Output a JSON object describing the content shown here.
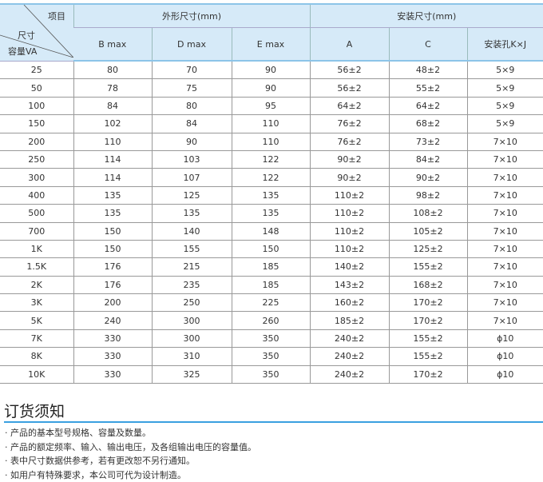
{
  "table": {
    "corner": {
      "top": "项目",
      "mid": "尺寸",
      "bottom": "容量VA"
    },
    "groups": [
      "外形尺寸(mm)",
      "安装尺寸(mm)"
    ],
    "columns": [
      "B max",
      "D max",
      "E max",
      "A",
      "C",
      "安装孔K×J"
    ],
    "rows": [
      [
        "25",
        "80",
        "70",
        "90",
        "56±2",
        "48±2",
        "5×9"
      ],
      [
        "50",
        "78",
        "75",
        "90",
        "56±2",
        "55±2",
        "5×9"
      ],
      [
        "100",
        "84",
        "80",
        "95",
        "64±2",
        "64±2",
        "5×9"
      ],
      [
        "150",
        "102",
        "84",
        "110",
        "76±2",
        "68±2",
        "5×9"
      ],
      [
        "200",
        "110",
        "90",
        "110",
        "76±2",
        "73±2",
        "7×10"
      ],
      [
        "250",
        "114",
        "103",
        "122",
        "90±2",
        "84±2",
        "7×10"
      ],
      [
        "300",
        "114",
        "107",
        "122",
        "90±2",
        "90±2",
        "7×10"
      ],
      [
        "400",
        "135",
        "125",
        "135",
        "110±2",
        "98±2",
        "7×10"
      ],
      [
        "500",
        "135",
        "135",
        "135",
        "110±2",
        "108±2",
        "7×10"
      ],
      [
        "700",
        "150",
        "140",
        "148",
        "110±2",
        "105±2",
        "7×10"
      ],
      [
        "1K",
        "150",
        "155",
        "150",
        "110±2",
        "125±2",
        "7×10"
      ],
      [
        "1.5K",
        "176",
        "215",
        "185",
        "140±2",
        "155±2",
        "7×10"
      ],
      [
        "2K",
        "176",
        "235",
        "185",
        "143±2",
        "168±2",
        "7×10"
      ],
      [
        "3K",
        "200",
        "250",
        "225",
        "160±2",
        "170±2",
        "7×10"
      ],
      [
        "5K",
        "240",
        "300",
        "260",
        "185±2",
        "170±2",
        "7×10"
      ],
      [
        "7K",
        "330",
        "300",
        "350",
        "240±2",
        "155±2",
        "ϕ10"
      ],
      [
        "8K",
        "330",
        "310",
        "350",
        "240±2",
        "155±2",
        "ϕ10"
      ],
      [
        "10K",
        "330",
        "325",
        "350",
        "240±2",
        "170±2",
        "ϕ10"
      ]
    ]
  },
  "notes": {
    "title": "订货须知",
    "items": [
      "· 产品的基本型号规格、容量及数量。",
      "· 产品的额定频率、输入、输出电压，及各组输出电压的容量值。",
      "· 表中尺寸数据供参考，若有更改恕不另行通知。",
      "· 如用户有特殊要求，本公司可代为设计制造。"
    ]
  }
}
